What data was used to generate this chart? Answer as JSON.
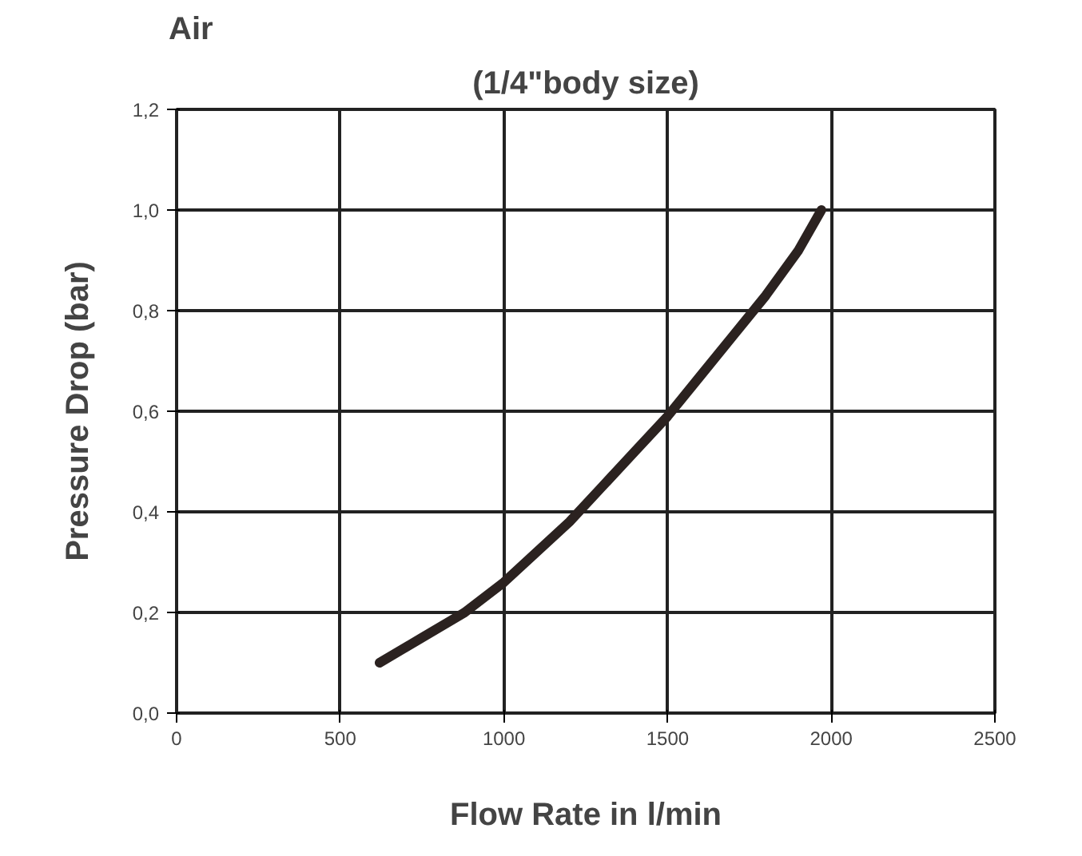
{
  "chart_data": {
    "type": "line",
    "title": "(1/4\"body size)",
    "xlabel": "Flow Rate in l/min",
    "ylabel": "Pressure Drop (bar)",
    "annotations": [
      "Air"
    ],
    "x": [
      620,
      750,
      880,
      1000,
      1100,
      1200,
      1300,
      1400,
      1500,
      1600,
      1700,
      1800,
      1900,
      1970
    ],
    "series": [
      {
        "color": "#2b2220",
        "values": [
          0.1,
          0.15,
          0.2,
          0.26,
          0.32,
          0.38,
          0.45,
          0.52,
          0.59,
          0.67,
          0.75,
          0.83,
          0.92,
          1.0
        ]
      }
    ],
    "xlim": [
      0,
      2500
    ],
    "ylim": [
      0,
      1.2
    ],
    "xticks": [
      0,
      500,
      1000,
      1500,
      2000,
      2500
    ],
    "yticks": [
      {
        "value": 0,
        "label": "0,0"
      },
      {
        "value": 0.2,
        "label": "0,2"
      },
      {
        "value": 0.4,
        "label": "0,4"
      },
      {
        "value": 0.6,
        "label": "0,6"
      },
      {
        "value": 0.8,
        "label": "0,8"
      },
      {
        "value": 1.0,
        "label": "1,0"
      },
      {
        "value": 1.2,
        "label": "1,2"
      }
    ],
    "grid": true,
    "marker": "none",
    "line_style": "solid"
  }
}
